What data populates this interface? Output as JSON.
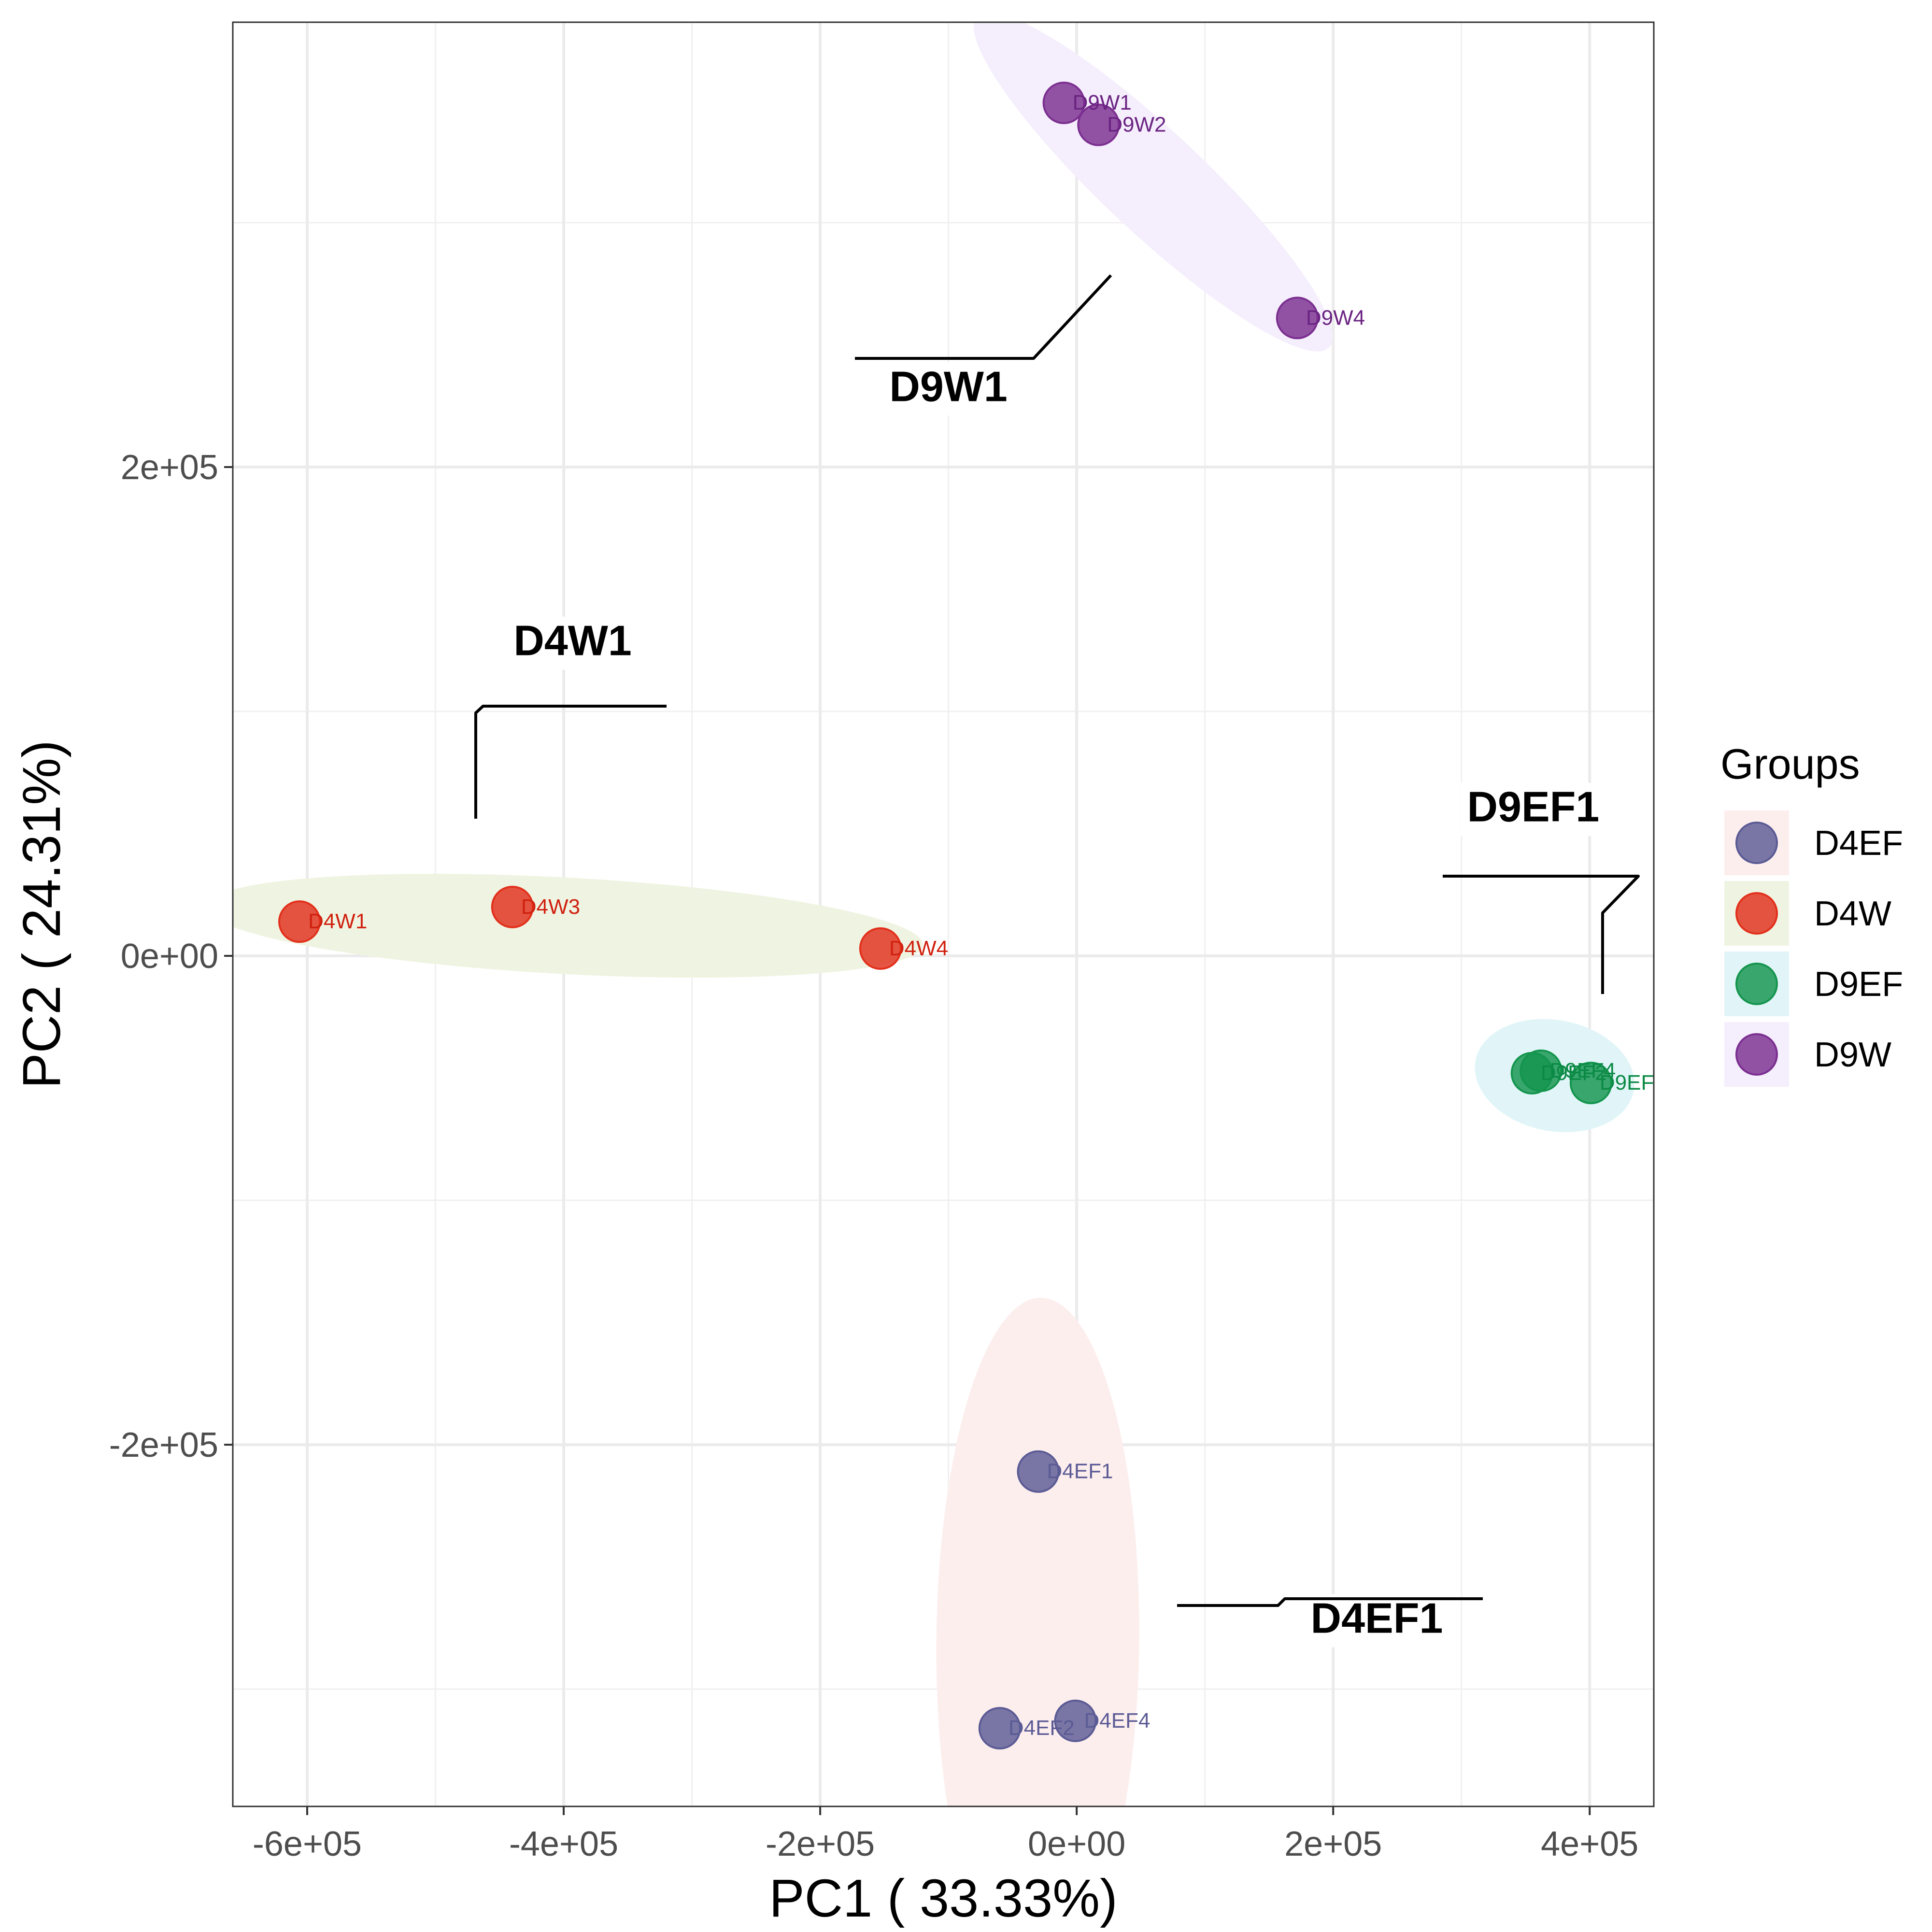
{
  "chart_data": {
    "type": "scatter",
    "xlabel": "PC1 ( 33.33%)",
    "ylabel": "PC2 ( 24.31%)",
    "xlim": [
      -658000,
      450000
    ],
    "ylim": [
      -348000,
      382000
    ],
    "x_ticks": [
      {
        "value": -600000,
        "label": "-6e+05"
      },
      {
        "value": -400000,
        "label": "-4e+05"
      },
      {
        "value": -200000,
        "label": "-2e+05"
      },
      {
        "value": 0,
        "label": "0e+00"
      },
      {
        "value": 200000,
        "label": "2e+05"
      },
      {
        "value": 400000,
        "label": "4e+05"
      }
    ],
    "y_ticks": [
      {
        "value": 200000,
        "label": "2e+05"
      },
      {
        "value": 0,
        "label": "0e+00"
      },
      {
        "value": -200000,
        "label": "-2e+05"
      }
    ],
    "grid": true,
    "legend": {
      "title": "Groups",
      "placement": "right",
      "entries": [
        "D4EF",
        "D4W",
        "D9EF",
        "D9W"
      ]
    },
    "groups": [
      {
        "name": "D4EF",
        "point_color": "#5b5b95",
        "label_color": "#5b5b95",
        "ellipse_color": "#fdeeee"
      },
      {
        "name": "D4W",
        "point_color": "#e2301c",
        "label_color": "#d0200f",
        "ellipse_color": "#eff4e2"
      },
      {
        "name": "D9EF",
        "point_color": "#14954e",
        "label_color": "#0b8a45",
        "ellipse_color": "#e1f5f8"
      },
      {
        "name": "D9W",
        "point_color": "#7b2f90",
        "label_color": "#6a2381",
        "ellipse_color": "#f5eefd"
      }
    ],
    "points": [
      {
        "group": "D4W",
        "label": "D4W1",
        "x": -606000,
        "y": 14000
      },
      {
        "group": "D4W",
        "label": "D4W3",
        "x": -440000,
        "y": 20000
      },
      {
        "group": "D4W",
        "label": "D4W4",
        "x": -153000,
        "y": 3000
      },
      {
        "group": "D9W",
        "label": "D9W1",
        "x": -10000,
        "y": 349000
      },
      {
        "group": "D9W",
        "label": "D9W2",
        "x": 17000,
        "y": 340000
      },
      {
        "group": "D9W",
        "label": "D9W4",
        "x": 172000,
        "y": 261000
      },
      {
        "group": "D9EF",
        "label": "D9EF2",
        "x": 355000,
        "y": -48000
      },
      {
        "group": "D9EF",
        "label": "D9EF4",
        "x": 362000,
        "y": -47000
      },
      {
        "group": "D9EF",
        "label": "D9EF",
        "x": 401000,
        "y": -52000
      },
      {
        "group": "D4EF",
        "label": "D4EF1",
        "x": -30000,
        "y": -211000
      },
      {
        "group": "D4EF",
        "label": "D4EF2",
        "x": -60000,
        "y": -316000
      },
      {
        "group": "D4EF",
        "label": "D4EF4",
        "x": -1000,
        "y": -313000
      }
    ],
    "callouts": [
      {
        "text": "D9W1",
        "x": -100000,
        "y": 227000
      },
      {
        "text": "D4W1",
        "x": -393000,
        "y": 123000
      },
      {
        "text": "D9EF1",
        "x": 356000,
        "y": 55000
      },
      {
        "text": "D4EF1",
        "x": 234000,
        "y": -277000
      }
    ]
  }
}
